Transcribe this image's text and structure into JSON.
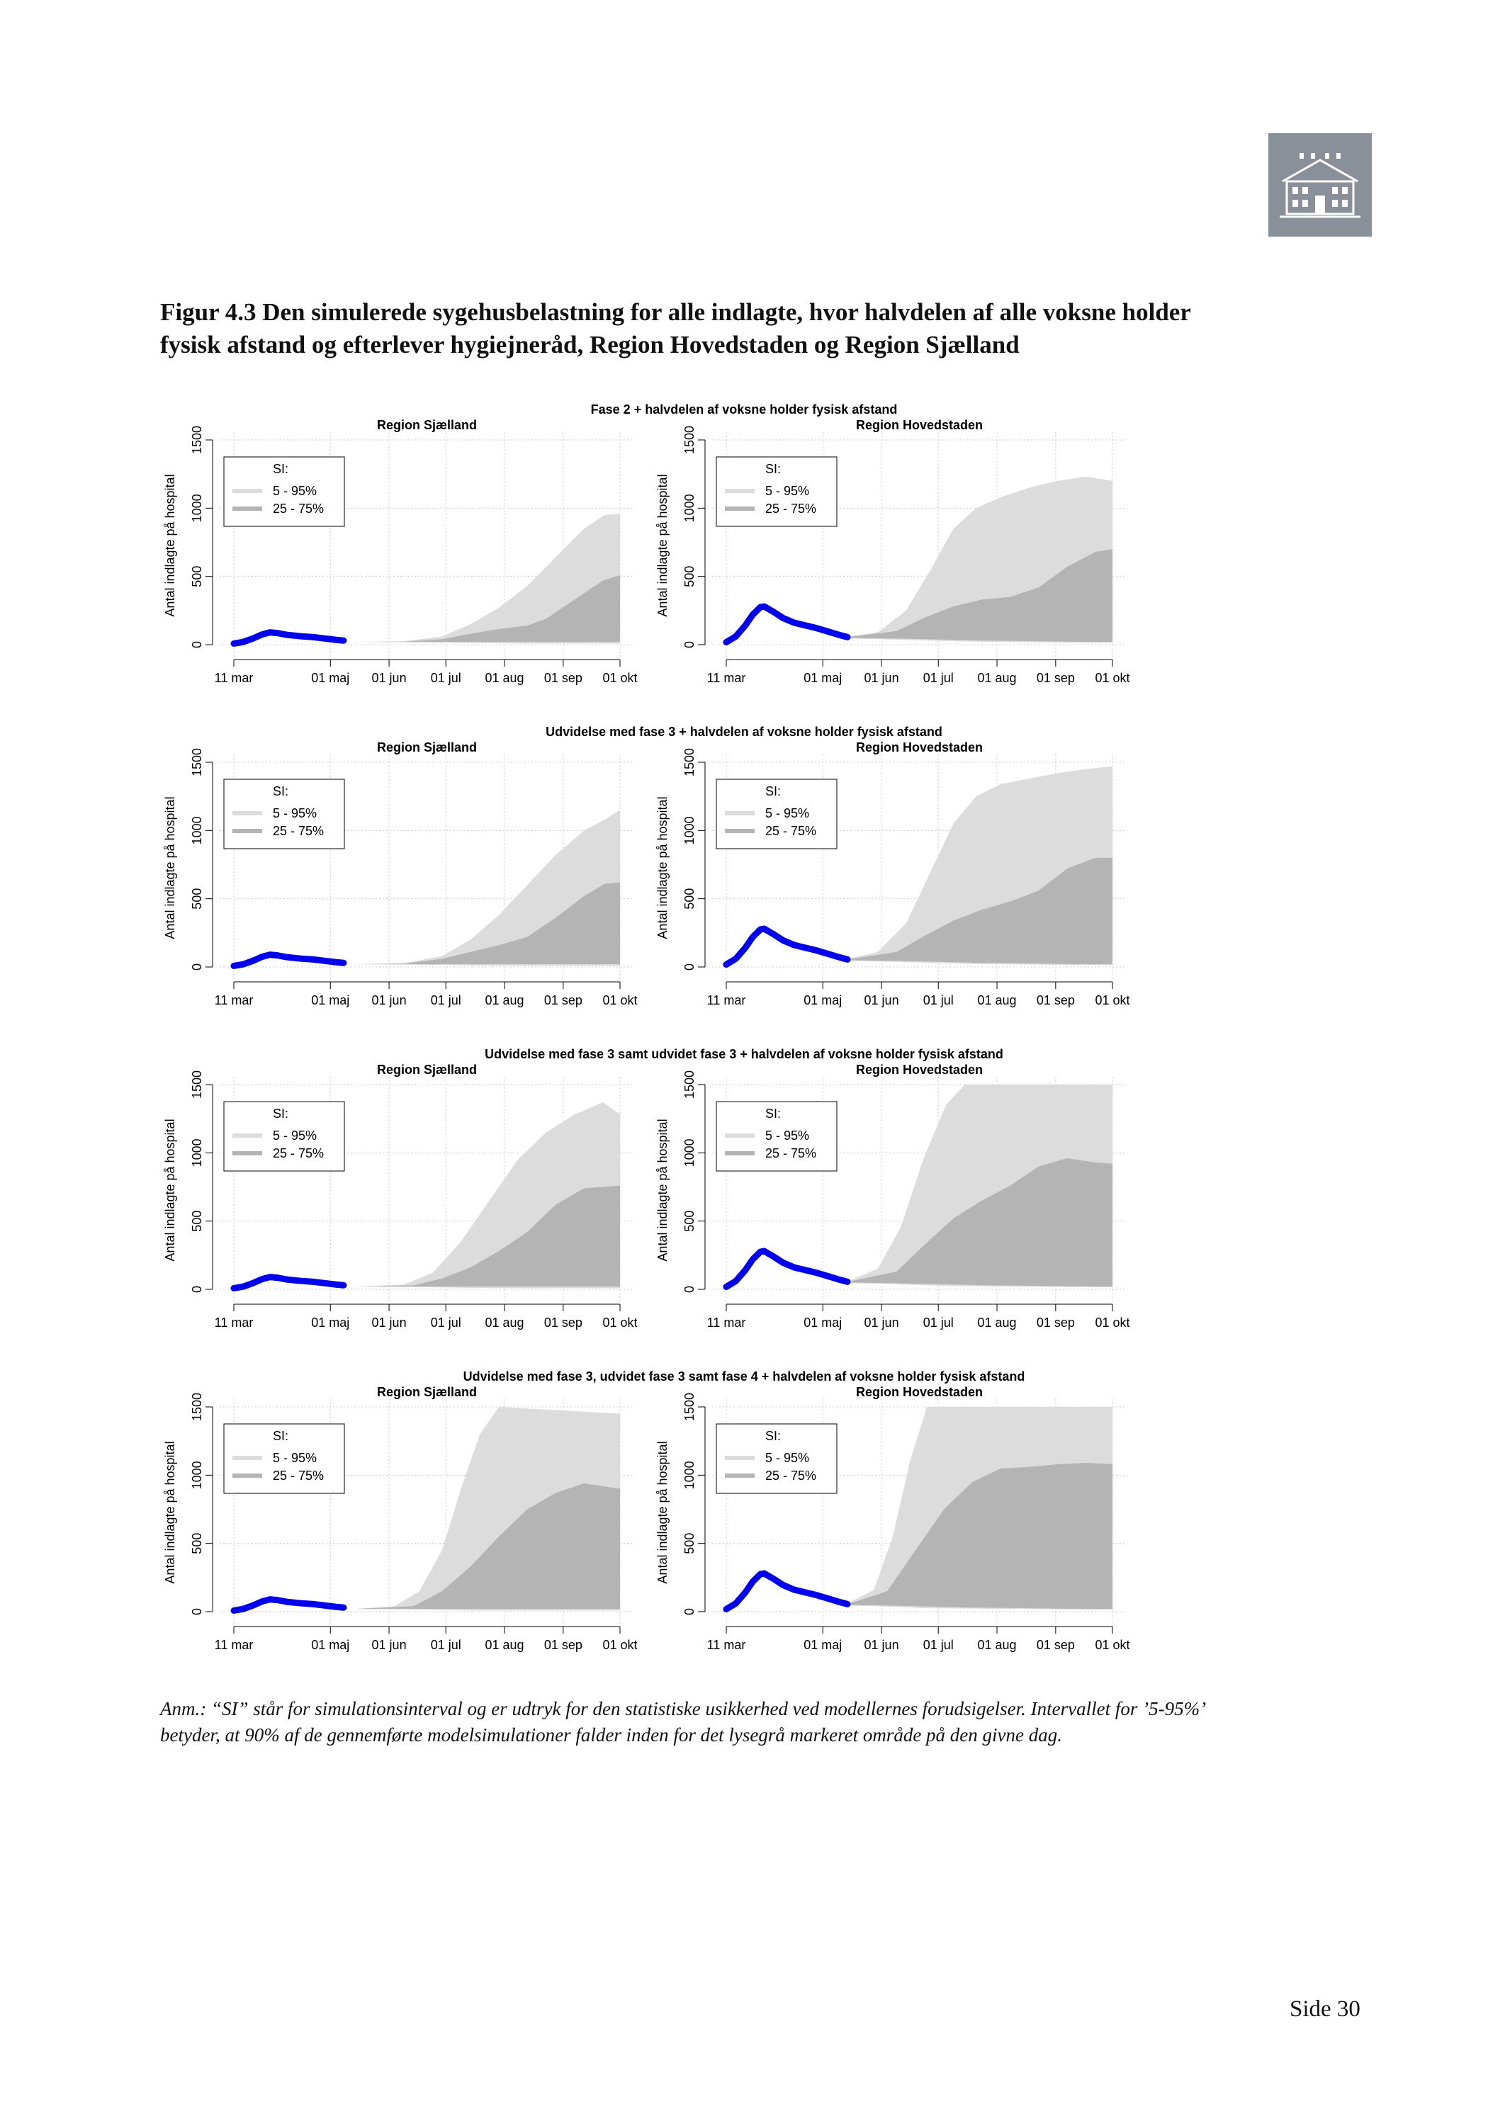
{
  "header": {
    "logo_icon": "building-icon",
    "logo_color": "#8a9099"
  },
  "figure": {
    "title": "Figur 4.3 Den simulerede sygehusbelastning for alle indlagte, hvor halvdelen af alle voksne holder fysisk afstand og efterlever hygiejneråd, Region Hovedstaden og Region Sjælland",
    "note": "Anm.: “SI” står for simulationsinterval og er udtryk for den statistiske usikkerhed ved modellernes forudsigelser. Intervallet for ’5-95%’ betyder, at 90% af de gennemførte modelsimulationer falder inden for det lysegrå markeret område på den givne dag."
  },
  "footer": {
    "page": "Side 30"
  },
  "colors": {
    "band_5_95": "#dcdcdc",
    "band_25_75": "#b4b4b4",
    "observed": "#0000ee",
    "grid": "#cfcfcf"
  },
  "chart_data": {
    "type": "area",
    "ylabel": "Antal indlagte på hospital",
    "x_ticks": [
      "11 mar",
      "01 maj",
      "01 jun",
      "01 jul",
      "01 aug",
      "01 sep",
      "01 okt"
    ],
    "x_tick_days": [
      0,
      51,
      82,
      112,
      143,
      174,
      204
    ],
    "y_ticks": [
      0,
      500,
      1000,
      1500
    ],
    "ylim": [
      0,
      1500
    ],
    "legend": {
      "title": "SI:",
      "items": [
        "5 - 95%",
        "25 - 75%"
      ]
    },
    "x_unit": "days since 11 mar",
    "observed": {
      "Region Sjælland": [
        [
          0,
          8
        ],
        [
          5,
          20
        ],
        [
          10,
          45
        ],
        [
          15,
          75
        ],
        [
          19,
          90
        ],
        [
          23,
          85
        ],
        [
          28,
          72
        ],
        [
          35,
          62
        ],
        [
          42,
          55
        ],
        [
          48,
          45
        ],
        [
          54,
          35
        ],
        [
          58,
          30
        ]
      ],
      "Region Hovedstaden": [
        [
          0,
          18
        ],
        [
          5,
          60
        ],
        [
          10,
          140
        ],
        [
          14,
          220
        ],
        [
          18,
          275
        ],
        [
          20,
          280
        ],
        [
          25,
          240
        ],
        [
          30,
          195
        ],
        [
          36,
          160
        ],
        [
          42,
          140
        ],
        [
          48,
          120
        ],
        [
          54,
          95
        ],
        [
          60,
          70
        ],
        [
          64,
          55
        ]
      ]
    },
    "scenarios": [
      {
        "title": "Fase 2 + halvdelen af voksne holder fysisk afstand",
        "panels": [
          {
            "region": "Region Sjælland",
            "band_5_95": [
              [
                64,
                20,
                20
              ],
              [
                90,
                18,
                25
              ],
              [
                110,
                15,
                60
              ],
              [
                125,
                12,
                150
              ],
              [
                140,
                10,
                270
              ],
              [
                155,
                8,
                430
              ],
              [
                170,
                8,
                640
              ],
              [
                185,
                8,
                850
              ],
              [
                196,
                8,
                950
              ],
              [
                204,
                8,
                960
              ]
            ],
            "band_25_75": [
              [
                64,
                20,
                20
              ],
              [
                90,
                20,
                22
              ],
              [
                110,
                20,
                40
              ],
              [
                125,
                20,
                80
              ],
              [
                140,
                20,
                115
              ],
              [
                155,
                20,
                140
              ],
              [
                165,
                20,
                190
              ],
              [
                180,
                20,
                330
              ],
              [
                195,
                20,
                470
              ],
              [
                204,
                20,
                510
              ]
            ]
          },
          {
            "region": "Region Hovedstaden",
            "band_5_95": [
              [
                64,
                45,
                60
              ],
              [
                80,
                40,
                90
              ],
              [
                95,
                35,
                250
              ],
              [
                108,
                30,
                550
              ],
              [
                120,
                25,
                850
              ],
              [
                132,
                22,
                1000
              ],
              [
                145,
                20,
                1080
              ],
              [
                160,
                18,
                1150
              ],
              [
                175,
                15,
                1200
              ],
              [
                190,
                15,
                1230
              ],
              [
                204,
                15,
                1200
              ]
            ],
            "band_25_75": [
              [
                64,
                50,
                55
              ],
              [
                90,
                45,
                100
              ],
              [
                105,
                40,
                200
              ],
              [
                120,
                35,
                280
              ],
              [
                135,
                30,
                330
              ],
              [
                150,
                28,
                350
              ],
              [
                165,
                25,
                420
              ],
              [
                180,
                22,
                570
              ],
              [
                195,
                20,
                680
              ],
              [
                204,
                20,
                700
              ]
            ]
          }
        ]
      },
      {
        "title": "Udvidelse med fase 3 + halvdelen af voksne holder fysisk afstand",
        "panels": [
          {
            "region": "Region Sjælland",
            "band_5_95": [
              [
                64,
                20,
                20
              ],
              [
                90,
                18,
                28
              ],
              [
                110,
                15,
                80
              ],
              [
                125,
                12,
                200
              ],
              [
                140,
                10,
                380
              ],
              [
                155,
                8,
                600
              ],
              [
                170,
                8,
                820
              ],
              [
                185,
                8,
                1000
              ],
              [
                196,
                8,
                1080
              ],
              [
                204,
                8,
                1150
              ]
            ],
            "band_25_75": [
              [
                64,
                20,
                20
              ],
              [
                90,
                20,
                25
              ],
              [
                110,
                20,
                60
              ],
              [
                125,
                20,
                110
              ],
              [
                140,
                20,
                160
              ],
              [
                155,
                20,
                220
              ],
              [
                170,
                20,
                360
              ],
              [
                185,
                20,
                520
              ],
              [
                196,
                20,
                610
              ],
              [
                204,
                20,
                620
              ]
            ]
          },
          {
            "region": "Region Hovedstaden",
            "band_5_95": [
              [
                64,
                45,
                60
              ],
              [
                80,
                40,
                110
              ],
              [
                95,
                35,
                320
              ],
              [
                108,
                30,
                700
              ],
              [
                120,
                25,
                1050
              ],
              [
                132,
                22,
                1250
              ],
              [
                145,
                20,
                1340
              ],
              [
                160,
                18,
                1380
              ],
              [
                175,
                15,
                1420
              ],
              [
                190,
                15,
                1450
              ],
              [
                204,
                15,
                1470
              ]
            ],
            "band_25_75": [
              [
                64,
                50,
                55
              ],
              [
                90,
                45,
                110
              ],
              [
                105,
                40,
                230
              ],
              [
                120,
                35,
                340
              ],
              [
                135,
                30,
                420
              ],
              [
                150,
                28,
                480
              ],
              [
                165,
                25,
                560
              ],
              [
                180,
                22,
                720
              ],
              [
                195,
                20,
                800
              ],
              [
                204,
                20,
                800
              ]
            ]
          }
        ]
      },
      {
        "title": "Udvidelse med fase 3 samt udvidet fase 3 + halvdelen af voksne holder fysisk afstand",
        "panels": [
          {
            "region": "Region Sjælland",
            "band_5_95": [
              [
                64,
                20,
                20
              ],
              [
                90,
                18,
                35
              ],
              [
                105,
                15,
                120
              ],
              [
                120,
                12,
                350
              ],
              [
                135,
                10,
                650
              ],
              [
                150,
                8,
                950
              ],
              [
                165,
                8,
                1150
              ],
              [
                180,
                8,
                1280
              ],
              [
                195,
                8,
                1370
              ],
              [
                204,
                8,
                1280
              ]
            ],
            "band_25_75": [
              [
                64,
                20,
                20
              ],
              [
                95,
                20,
                30
              ],
              [
                110,
                20,
                80
              ],
              [
                125,
                20,
                160
              ],
              [
                140,
                20,
                280
              ],
              [
                155,
                20,
                420
              ],
              [
                170,
                20,
                620
              ],
              [
                185,
                20,
                740
              ],
              [
                204,
                20,
                760
              ]
            ]
          },
          {
            "region": "Region Hovedstaden",
            "band_5_95": [
              [
                64,
                45,
                60
              ],
              [
                80,
                40,
                150
              ],
              [
                92,
                35,
                450
              ],
              [
                104,
                30,
                950
              ],
              [
                116,
                25,
                1350
              ],
              [
                126,
                22,
                1500
              ],
              [
                204,
                15,
                1500
              ]
            ],
            "band_25_75": [
              [
                64,
                50,
                55
              ],
              [
                90,
                45,
                130
              ],
              [
                105,
                40,
                330
              ],
              [
                120,
                35,
                520
              ],
              [
                135,
                30,
                650
              ],
              [
                150,
                28,
                760
              ],
              [
                165,
                25,
                900
              ],
              [
                180,
                22,
                960
              ],
              [
                195,
                20,
                930
              ],
              [
                204,
                20,
                920
              ]
            ]
          }
        ]
      },
      {
        "title": "Udvidelse med fase 3, udvidet fase 3 samt fase 4 + halvdelen af voksne holder fysisk afstand",
        "panels": [
          {
            "region": "Region Sjælland",
            "band_5_95": [
              [
                64,
                20,
                20
              ],
              [
                85,
                18,
                40
              ],
              [
                98,
                15,
                150
              ],
              [
                110,
                12,
                450
              ],
              [
                120,
                10,
                900
              ],
              [
                130,
                8,
                1300
              ],
              [
                140,
                8,
                1500
              ],
              [
                204,
                8,
                1450
              ]
            ],
            "band_25_75": [
              [
                64,
                20,
                20
              ],
              [
                95,
                20,
                40
              ],
              [
                110,
                20,
                150
              ],
              [
                125,
                20,
                330
              ],
              [
                140,
                20,
                550
              ],
              [
                155,
                20,
                750
              ],
              [
                170,
                20,
                870
              ],
              [
                185,
                20,
                940
              ],
              [
                204,
                20,
                900
              ]
            ]
          },
          {
            "region": "Region Hovedstaden",
            "band_5_95": [
              [
                64,
                45,
                60
              ],
              [
                78,
                40,
                160
              ],
              [
                88,
                35,
                550
              ],
              [
                97,
                30,
                1100
              ],
              [
                106,
                25,
                1500
              ],
              [
                204,
                15,
                1500
              ]
            ],
            "band_25_75": [
              [
                64,
                50,
                55
              ],
              [
                85,
                45,
                150
              ],
              [
                100,
                40,
                450
              ],
              [
                115,
                35,
                750
              ],
              [
                130,
                30,
                950
              ],
              [
                145,
                28,
                1050
              ],
              [
                160,
                25,
                1060
              ],
              [
                175,
                22,
                1080
              ],
              [
                190,
                20,
                1090
              ],
              [
                204,
                20,
                1080
              ]
            ]
          }
        ]
      }
    ]
  }
}
